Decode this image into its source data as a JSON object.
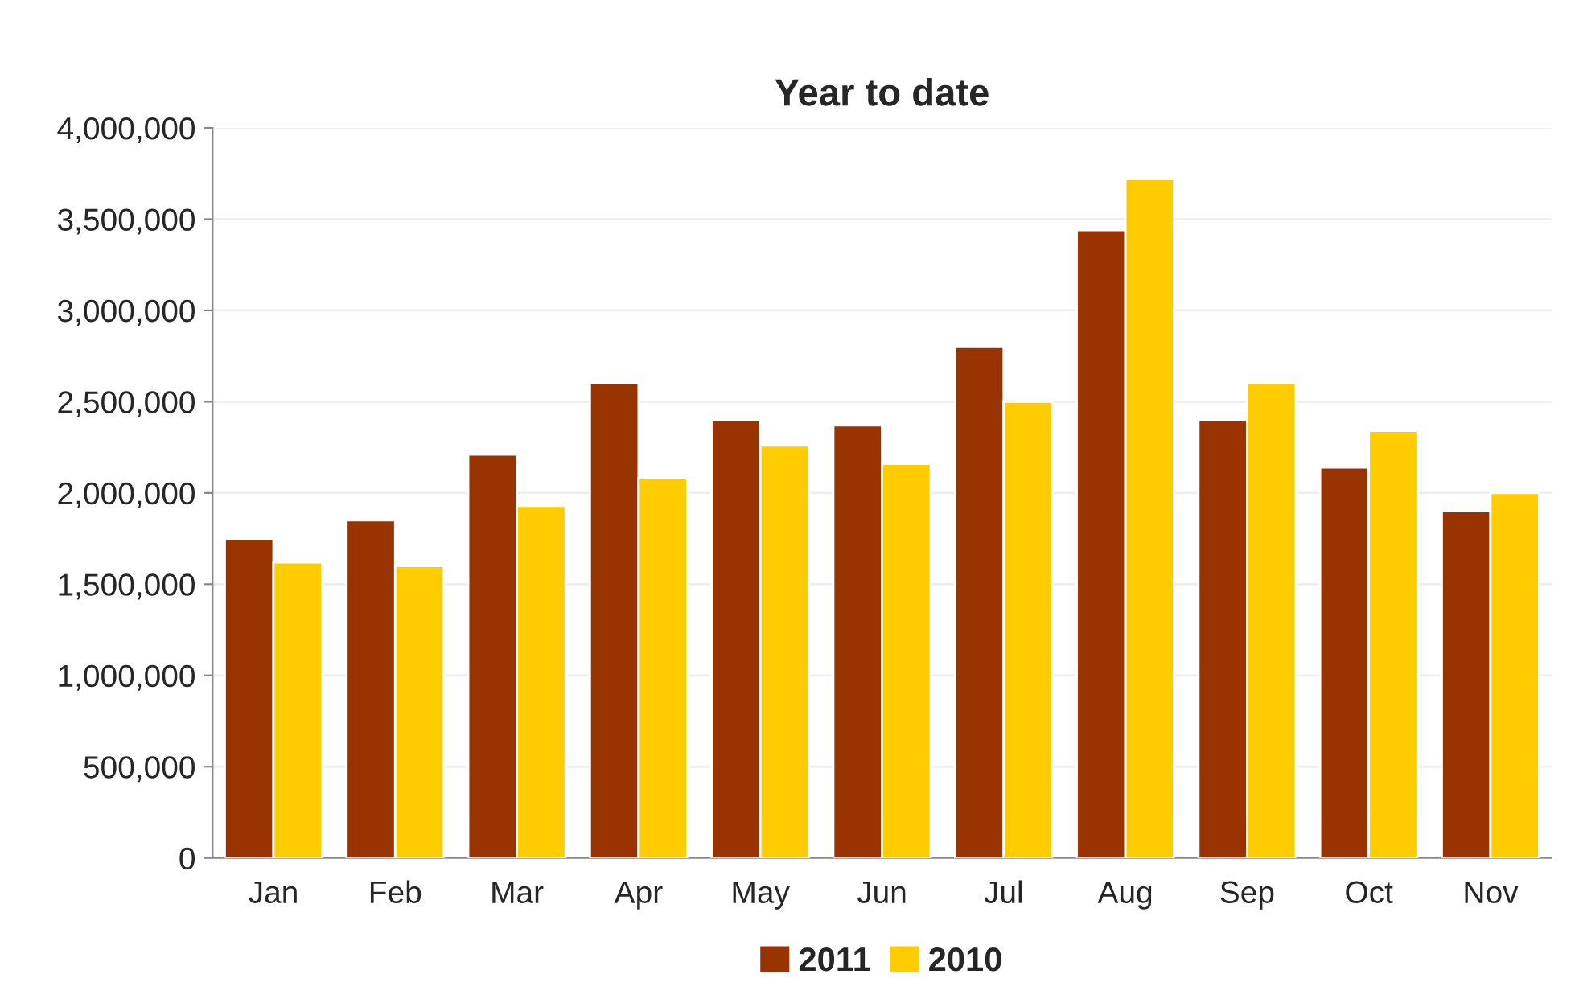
{
  "chart_data": {
    "type": "bar",
    "title": "Year to date",
    "categories": [
      "Jan",
      "Feb",
      "Mar",
      "Apr",
      "May",
      "Jun",
      "Jul",
      "Aug",
      "Sep",
      "Oct",
      "Nov"
    ],
    "series": [
      {
        "name": "2011",
        "color": "#993300",
        "values": [
          1750000,
          1850000,
          2210000,
          2600000,
          2400000,
          2370000,
          2800000,
          3440000,
          2400000,
          2140000,
          1900000
        ]
      },
      {
        "name": "2010",
        "color": "#ffcc00",
        "values": [
          1620000,
          1600000,
          1930000,
          2080000,
          2260000,
          2160000,
          2500000,
          3720000,
          2600000,
          2340000,
          2000000
        ]
      }
    ],
    "ylim": [
      0,
      4000000
    ],
    "yticks": [
      {
        "value": 0,
        "label": "0"
      },
      {
        "value": 500000,
        "label": "500,000"
      },
      {
        "value": 1000000,
        "label": "1,000,000"
      },
      {
        "value": 1500000,
        "label": "1,500,000"
      },
      {
        "value": 2000000,
        "label": "2,000,000"
      },
      {
        "value": 2500000,
        "label": "2,500,000"
      },
      {
        "value": 3000000,
        "label": "3,000,000"
      },
      {
        "value": 3500000,
        "label": "3,500,000"
      },
      {
        "value": 4000000,
        "label": "4,000,000"
      }
    ],
    "grid": "y",
    "legend": "bottom"
  }
}
